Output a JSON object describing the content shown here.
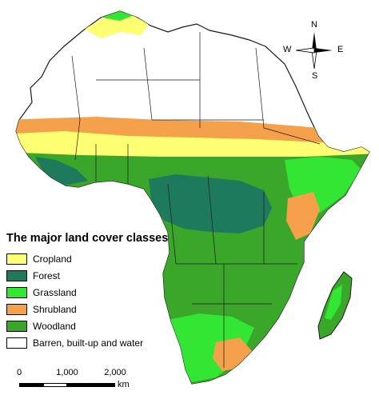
{
  "legend": {
    "title": "The major land cover classes",
    "items": [
      {
        "label": "Cropland",
        "color": "#ffff73"
      },
      {
        "label": "Forest",
        "color": "#1e7a5c"
      },
      {
        "label": "Grassland",
        "color": "#33e633"
      },
      {
        "label": "Shrubland",
        "color": "#f5a04a"
      },
      {
        "label": "Woodland",
        "color": "#3aa62a"
      },
      {
        "label": "Barren, built-up and water",
        "color": "#ffffff"
      }
    ]
  },
  "compass": {
    "n": "N",
    "s": "S",
    "e": "E",
    "w": "W"
  },
  "scale": {
    "ticks": [
      "0",
      "1,000",
      "2,000"
    ],
    "unit": "km"
  },
  "colors": {
    "border": "#1a1a1a",
    "barren": "#ffffff",
    "cropland": "#ffff73",
    "forest": "#1e7a5c",
    "grassland": "#33e633",
    "shrubland": "#f5a04a",
    "woodland": "#3aa62a"
  }
}
